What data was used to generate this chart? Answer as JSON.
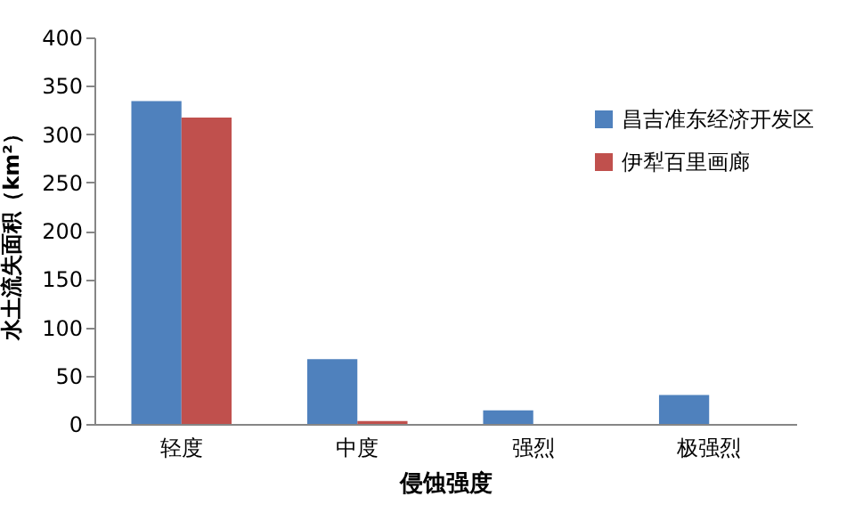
{
  "chart_data": {
    "type": "bar",
    "xlabel": "侵蚀强度",
    "ylabel": "水土流失面积（km²）",
    "categories": [
      "轻度",
      "中度",
      "强烈",
      "极强烈"
    ],
    "series": [
      {
        "name": "昌吉准东经济开发区",
        "color": "#4f81bd",
        "values": [
          334,
          67,
          14,
          30
        ]
      },
      {
        "name": "伊犁百里画廊",
        "color": "#c0504d",
        "values": [
          317,
          3,
          0,
          0
        ]
      }
    ],
    "ylim": [
      0,
      400
    ],
    "yticks": [
      0,
      50,
      100,
      150,
      200,
      250,
      300,
      350,
      400
    ],
    "grid": false,
    "legend": "top right"
  }
}
